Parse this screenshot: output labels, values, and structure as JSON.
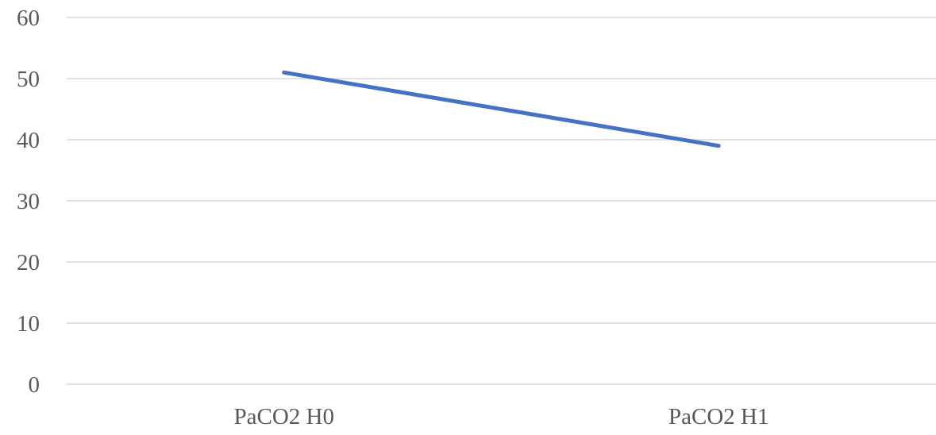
{
  "chart_data": {
    "type": "line",
    "categories": [
      "PaCO2 H0",
      "PaCO2 H1"
    ],
    "series": [
      {
        "values": [
          51,
          39
        ]
      }
    ],
    "ylim": [
      0,
      60
    ],
    "yticks": [
      "0",
      "10",
      "20",
      "30",
      "40",
      "50",
      "60"
    ],
    "grid": true,
    "colors": {
      "series": "#4472c4",
      "grid": "#d9d9d9",
      "text": "#595959"
    }
  }
}
